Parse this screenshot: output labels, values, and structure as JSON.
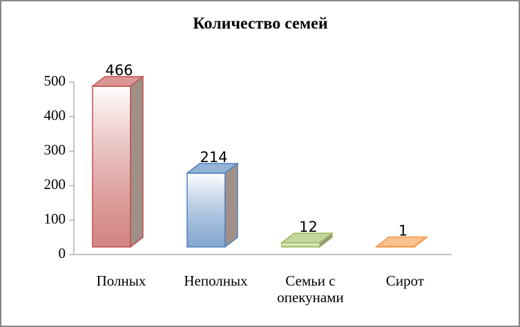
{
  "chart_data": {
    "type": "bar3d",
    "title": "Количество семей",
    "categories": [
      "Полных",
      "Неполных",
      "Семьи с опекунами",
      "Сирот"
    ],
    "values": [
      466,
      214,
      12,
      1
    ],
    "colors": [
      "#c0504d",
      "#4f81bd",
      "#9bbb59",
      "#f79646"
    ],
    "ylim": [
      0,
      500
    ],
    "yticks": [
      0,
      100,
      200,
      300,
      400,
      500
    ]
  }
}
